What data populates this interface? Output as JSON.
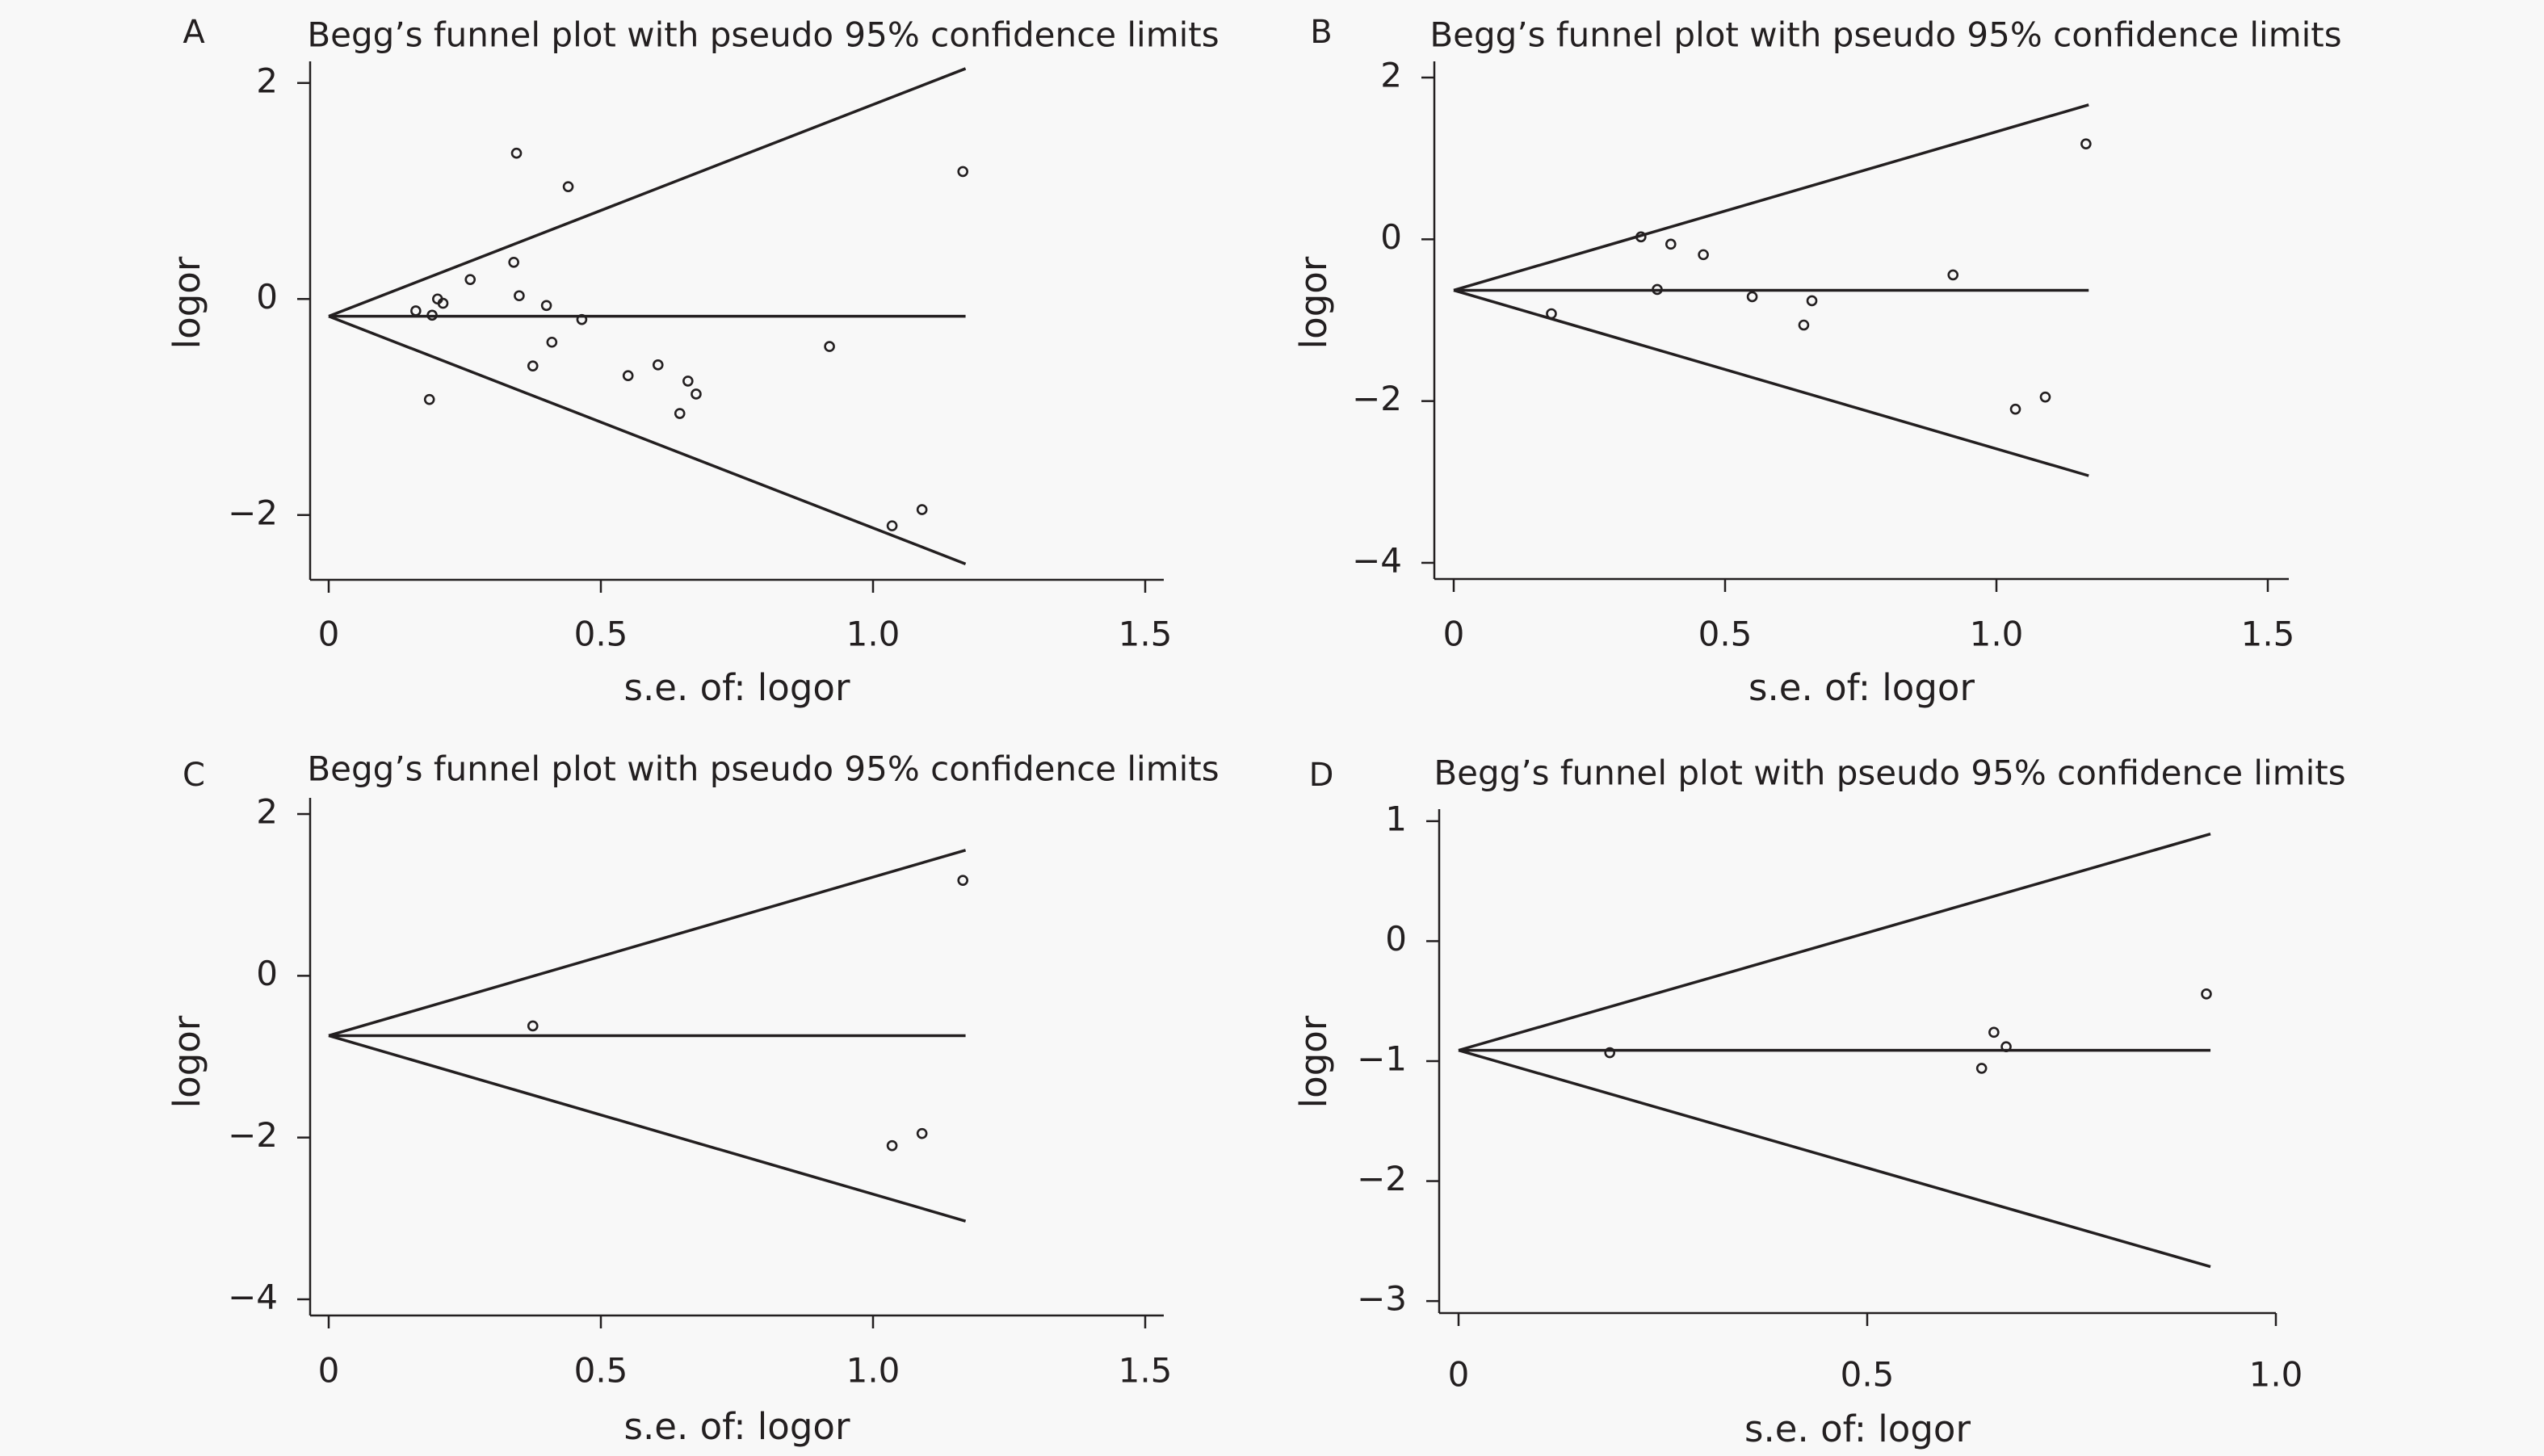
{
  "chart_data": [
    {
      "panel": "A",
      "type": "scatter",
      "title": "Begg’s funnel plot with pseudo 95% confidence limits",
      "xlabel": "s.e. of: logor",
      "ylabel": "logor",
      "xlim": [
        0,
        1.5
      ],
      "ylim": [
        -2.6,
        2.2
      ],
      "xticks": [
        {
          "value": 0,
          "label": "0"
        },
        {
          "value": 0.5,
          "label": "0.5"
        },
        {
          "value": 1,
          "label": "1.0"
        },
        {
          "value": 1.5,
          "label": "1.5"
        }
      ],
      "yticks": [
        {
          "value": 2,
          "label": "2"
        },
        {
          "value": 0,
          "label": "0"
        },
        {
          "value": -2,
          "label": "−2"
        }
      ],
      "pooled_logor": -0.16,
      "max_se": 1.17,
      "points": [
        [
          0.16,
          -0.11
        ],
        [
          0.19,
          -0.15
        ],
        [
          0.2,
          0.0
        ],
        [
          0.21,
          -0.04
        ],
        [
          0.26,
          0.18
        ],
        [
          0.34,
          0.34
        ],
        [
          0.345,
          1.35
        ],
        [
          0.35,
          0.03
        ],
        [
          0.375,
          -0.62
        ],
        [
          0.4,
          -0.06
        ],
        [
          0.41,
          -0.4
        ],
        [
          0.44,
          1.04
        ],
        [
          0.465,
          -0.19
        ],
        [
          0.55,
          -0.71
        ],
        [
          0.605,
          -0.61
        ],
        [
          0.645,
          -1.06
        ],
        [
          0.66,
          -0.76
        ],
        [
          0.675,
          -0.88
        ],
        [
          0.92,
          -0.44
        ],
        [
          1.035,
          -2.1
        ],
        [
          1.09,
          -1.95
        ],
        [
          1.165,
          1.18
        ],
        [
          0.185,
          -0.93
        ]
      ]
    },
    {
      "panel": "B",
      "type": "scatter",
      "title": "Begg’s funnel plot with pseudo 95% confidence limits",
      "xlabel": "s.e. of: logor",
      "ylabel": "logor",
      "xlim": [
        0,
        1.5
      ],
      "ylim": [
        -4.2,
        2.2
      ],
      "xticks": [
        {
          "value": 0,
          "label": "0"
        },
        {
          "value": 0.5,
          "label": "0.5"
        },
        {
          "value": 1,
          "label": "1.0"
        },
        {
          "value": 1.5,
          "label": "1.5"
        }
      ],
      "yticks": [
        {
          "value": 2,
          "label": "2"
        },
        {
          "value": 0,
          "label": "0"
        },
        {
          "value": -2,
          "label": "−2"
        },
        {
          "value": -4,
          "label": "−4"
        }
      ],
      "pooled_logor": -0.63,
      "max_se": 1.17,
      "points": [
        [
          0.18,
          -0.92
        ],
        [
          0.345,
          0.03
        ],
        [
          0.375,
          -0.62
        ],
        [
          0.4,
          -0.06
        ],
        [
          0.46,
          -0.19
        ],
        [
          0.55,
          -0.71
        ],
        [
          0.645,
          -1.06
        ],
        [
          0.66,
          -0.76
        ],
        [
          0.92,
          -0.44
        ],
        [
          1.035,
          -2.1
        ],
        [
          1.09,
          -1.95
        ],
        [
          1.165,
          1.18
        ]
      ]
    },
    {
      "panel": "C",
      "type": "scatter",
      "title": "Begg’s funnel plot with pseudo 95% confidence limits",
      "xlabel": "s.e. of: logor",
      "ylabel": "logor",
      "xlim": [
        0,
        1.5
      ],
      "ylim": [
        -4.2,
        2.2
      ],
      "xticks": [
        {
          "value": 0,
          "label": "0"
        },
        {
          "value": 0.5,
          "label": "0.5"
        },
        {
          "value": 1,
          "label": "1.0"
        },
        {
          "value": 1.5,
          "label": "1.5"
        }
      ],
      "yticks": [
        {
          "value": 2,
          "label": "2"
        },
        {
          "value": 0,
          "label": "0"
        },
        {
          "value": -2,
          "label": "−2"
        },
        {
          "value": -4,
          "label": "−4"
        }
      ],
      "pooled_logor": -0.74,
      "max_se": 1.17,
      "points": [
        [
          0.375,
          -0.62
        ],
        [
          1.035,
          -2.1
        ],
        [
          1.09,
          -1.95
        ],
        [
          1.165,
          1.18
        ]
      ]
    },
    {
      "panel": "D",
      "type": "scatter",
      "title": "Begg’s funnel plot with pseudo 95% confidence limits",
      "xlabel": "s.e. of: logor",
      "ylabel": "logor",
      "xlim": [
        0,
        1.0
      ],
      "ylim": [
        -3.1,
        1.1
      ],
      "xticks": [
        {
          "value": 0,
          "label": "0"
        },
        {
          "value": 0.5,
          "label": "0.5"
        },
        {
          "value": 1,
          "label": "1.0"
        }
      ],
      "yticks": [
        {
          "value": 1,
          "label": "1"
        },
        {
          "value": 0,
          "label": "0"
        },
        {
          "value": -1,
          "label": "−1"
        },
        {
          "value": -2,
          "label": "−2"
        },
        {
          "value": -3,
          "label": "−3"
        }
      ],
      "pooled_logor": -0.91,
      "max_se": 0.92,
      "points": [
        [
          0.185,
          -0.93
        ],
        [
          0.64,
          -1.06
        ],
        [
          0.655,
          -0.76
        ],
        [
          0.67,
          -0.88
        ],
        [
          0.915,
          -0.44
        ]
      ]
    }
  ]
}
